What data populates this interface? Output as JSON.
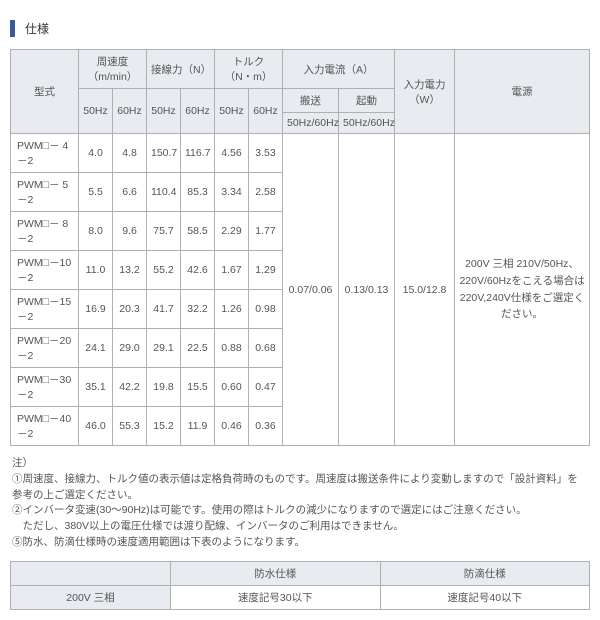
{
  "title": "仕様",
  "table1": {
    "headers": {
      "model": "型式",
      "speed": "周速度（m/min）",
      "force": "接線力（N）",
      "torque": "トルク（N・m）",
      "input_current": "入力電流（A）",
      "input_power": "入力電力（W）",
      "psu": "電源",
      "hz50": "50Hz",
      "hz60": "60Hz",
      "convey": "搬送",
      "start": "起動",
      "hz5060": "50Hz/60Hz"
    },
    "rows": [
      {
        "model": "PWM□－ 4－2",
        "s50": "4.0",
        "s60": "4.8",
        "f50": "150.7",
        "f60": "116.7",
        "t50": "4.56",
        "t60": "3.53"
      },
      {
        "model": "PWM□－ 5－2",
        "s50": "5.5",
        "s60": "6.6",
        "f50": "110.4",
        "f60": "85.3",
        "t50": "3.34",
        "t60": "2.58"
      },
      {
        "model": "PWM□－ 8－2",
        "s50": "8.0",
        "s60": "9.6",
        "f50": "75.7",
        "f60": "58.5",
        "t50": "2.29",
        "t60": "1.77"
      },
      {
        "model": "PWM□－10－2",
        "s50": "11.0",
        "s60": "13.2",
        "f50": "55.2",
        "f60": "42.6",
        "t50": "1.67",
        "t60": "1.29"
      },
      {
        "model": "PWM□－15－2",
        "s50": "16.9",
        "s60": "20.3",
        "f50": "41.7",
        "f60": "32.2",
        "t50": "1.26",
        "t60": "0.98"
      },
      {
        "model": "PWM□－20－2",
        "s50": "24.1",
        "s60": "29.0",
        "f50": "29.1",
        "f60": "22.5",
        "t50": "0.88",
        "t60": "0.68"
      },
      {
        "model": "PWM□－30－2",
        "s50": "35.1",
        "s60": "42.2",
        "f50": "19.8",
        "f60": "15.5",
        "t50": "0.60",
        "t60": "0.47"
      },
      {
        "model": "PWM□－40－2",
        "s50": "46.0",
        "s60": "55.3",
        "f50": "15.2",
        "f60": "11.9",
        "t50": "0.46",
        "t60": "0.36"
      }
    ],
    "span": {
      "convey_val": "0.07/0.06",
      "start_val": "0.13/0.13",
      "power_val": "15.0/12.8",
      "psu_text": "200V 三相 210V/50Hz、220V/60Hzをこえる場合は220V,240V仕様をご選定ください。"
    }
  },
  "notes": {
    "head": "注）",
    "n1": "①周速度、接線力、トルク値の表示値は定格負荷時のものです。周速度は搬送条件により変動しますので「設計資料」を参考の上ご選定ください。",
    "n2": "②インバータ変速(30～90Hz)は可能です。使用の際はトルクの減少になりますので選定にはご注意ください。",
    "n2b": "　ただし、380V以上の電圧仕様では渡り配線、インバータのご利用はできません。",
    "n5": "⑤防水、防滴仕様時の速度適用範囲は下表のようになります。"
  },
  "table2": {
    "h1": "防水仕様",
    "h2": "防滴仕様",
    "r1c1": "200V 三相",
    "r1c2": "速度記号30以下",
    "r1c3": "速度記号40以下"
  }
}
